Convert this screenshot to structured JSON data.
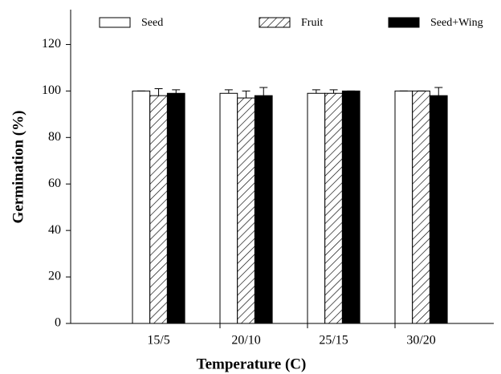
{
  "chart_data": {
    "type": "bar",
    "x_label": "Temperature (C)",
    "y_label": "Germination (%)",
    "categories": [
      "15/5",
      "20/10",
      "25/15",
      "30/20"
    ],
    "series": [
      {
        "name": "Seed",
        "color": "#ffffff",
        "values": [
          100,
          99,
          99,
          100
        ],
        "errors": [
          0,
          1.5,
          1.5,
          0
        ]
      },
      {
        "name": "Fruit",
        "color": "#ffffff",
        "hatch": true,
        "values": [
          98,
          97,
          99,
          100
        ],
        "errors": [
          3,
          3,
          1.5,
          0
        ]
      },
      {
        "name": "Seed+Wing",
        "color": "#000000",
        "values": [
          99,
          98,
          100,
          98
        ],
        "errors": [
          1.5,
          3.5,
          0,
          3.5
        ]
      }
    ],
    "ylim": [
      0,
      135
    ],
    "yticks": [
      0,
      20,
      40,
      60,
      80,
      100,
      120
    ],
    "grid": false
  }
}
